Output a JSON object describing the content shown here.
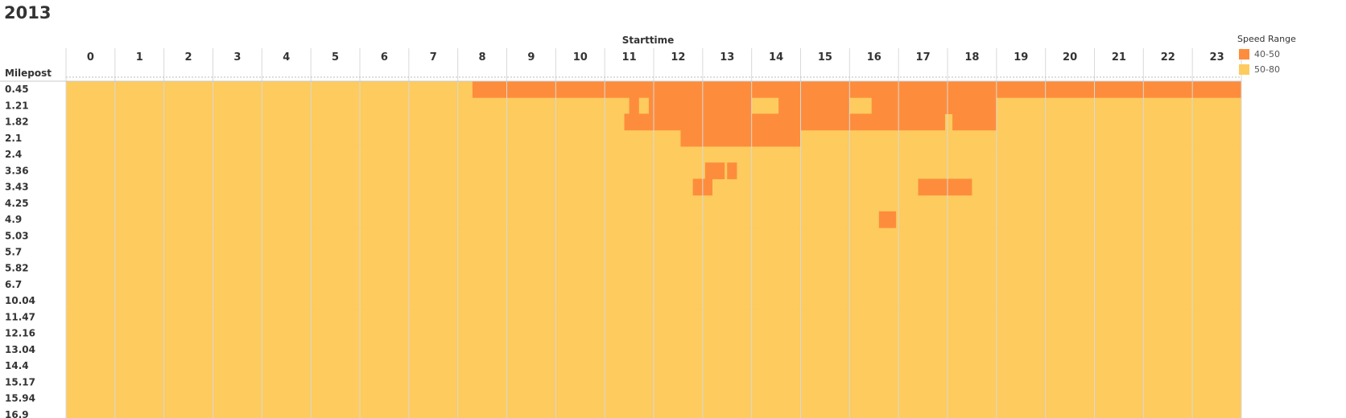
{
  "page": {
    "title": "2013"
  },
  "chart_data": {
    "type": "heatmap",
    "title": "2013",
    "xlabel": "Starttime",
    "ylabel": "Milepost",
    "x": [
      "0",
      "1",
      "2",
      "3",
      "4",
      "5",
      "6",
      "7",
      "8",
      "9",
      "10",
      "11",
      "12",
      "13",
      "14",
      "15",
      "16",
      "17",
      "18",
      "19",
      "20",
      "21",
      "22",
      "23"
    ],
    "y": [
      "0.45",
      "1.21",
      "1.82",
      "2.1",
      "2.4",
      "3.36",
      "3.43",
      "4.25",
      "4.9",
      "5.03",
      "5.7",
      "5.82",
      "6.7",
      "10.04",
      "11.47",
      "12.16",
      "13.04",
      "14.4",
      "15.17",
      "15.94",
      "16.9"
    ],
    "legend": {
      "title": "Speed Range",
      "position": "right",
      "items": [
        {
          "label": "40-50",
          "color": "#FD8D3C"
        },
        {
          "label": "50-80",
          "color": "#FDCB5E"
        }
      ]
    },
    "default_category": "50-80",
    "cells_40_50": [
      {
        "milepost": "0.45",
        "start": 8.3,
        "end": 24
      },
      {
        "milepost": "1.21",
        "start": 11.5,
        "end": 11.7
      },
      {
        "milepost": "1.21",
        "start": 11.9,
        "end": 14.0
      },
      {
        "milepost": "1.21",
        "start": 14.55,
        "end": 16.0
      },
      {
        "milepost": "1.21",
        "start": 16.45,
        "end": 19
      },
      {
        "milepost": "1.82",
        "start": 11.4,
        "end": 17.95
      },
      {
        "milepost": "1.82",
        "start": 18.1,
        "end": 19
      },
      {
        "milepost": "2.1",
        "start": 12.55,
        "end": 15
      },
      {
        "milepost": "3.36",
        "start": 13.05,
        "end": 13.45
      },
      {
        "milepost": "3.36",
        "start": 13.5,
        "end": 13.7
      },
      {
        "milepost": "3.43",
        "start": 12.8,
        "end": 13.2
      },
      {
        "milepost": "3.43",
        "start": 17.4,
        "end": 18.5
      },
      {
        "milepost": "4.9",
        "start": 16.6,
        "end": 16.95
      }
    ]
  }
}
